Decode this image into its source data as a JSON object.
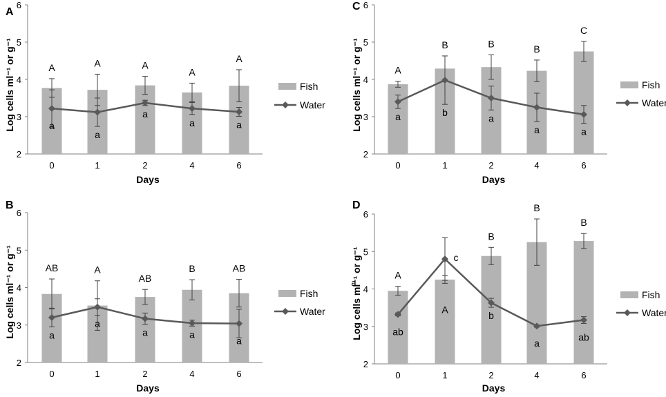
{
  "figure": {
    "legend": {
      "bar_label": "Fish",
      "line_label": "Water"
    },
    "colors": {
      "bar": "#b3b3b3",
      "line": "#595959",
      "axis": "#7f7f7f",
      "error": "#404040"
    }
  },
  "chart_data": [
    {
      "panel": "A",
      "type": "bar+line",
      "categories": [
        "0",
        "1",
        "2",
        "4",
        "6"
      ],
      "xlabel": "Days",
      "ylabel": "Log cells ml⁻¹ or g⁻¹",
      "ylim": [
        2,
        6
      ],
      "yticks": [
        "2",
        "3",
        "4",
        "5",
        "6"
      ],
      "series": [
        {
          "name": "Fish",
          "kind": "bar",
          "values": [
            3.77,
            3.72,
            3.84,
            3.65,
            3.83
          ],
          "err": [
            0.25,
            0.42,
            0.24,
            0.25,
            0.43
          ],
          "letters": [
            "A",
            "A",
            "A",
            "A",
            "A"
          ]
        },
        {
          "name": "Water",
          "kind": "line",
          "values": [
            3.22,
            3.12,
            3.37,
            3.22,
            3.13
          ],
          "err": [
            0.5,
            0.38,
            0.07,
            0.16,
            0.12
          ],
          "letters": [
            "a",
            "a",
            "a",
            "a",
            "a"
          ]
        }
      ]
    },
    {
      "panel": "B",
      "type": "bar+line",
      "categories": [
        "0",
        "1",
        "2",
        "4",
        "6"
      ],
      "xlabel": "Days",
      "ylabel": "Log cells ml⁻¹ or g⁻¹",
      "ylim": [
        2,
        6
      ],
      "yticks": [
        "2",
        "3",
        "4",
        "5",
        "6"
      ],
      "series": [
        {
          "name": "Fish",
          "kind": "bar",
          "values": [
            3.83,
            3.52,
            3.75,
            3.94,
            3.85
          ],
          "err": [
            0.4,
            0.66,
            0.2,
            0.27,
            0.37
          ],
          "letters": [
            "AB",
            "A",
            "AB",
            "B",
            "AB"
          ]
        },
        {
          "name": "Water",
          "kind": "line",
          "values": [
            3.2,
            3.48,
            3.17,
            3.05,
            3.04
          ],
          "err": [
            0.25,
            0.22,
            0.15,
            0.08,
            0.38
          ],
          "letters": [
            "a",
            "a",
            "a",
            "a",
            "a"
          ]
        }
      ]
    },
    {
      "panel": "C",
      "type": "bar+line",
      "categories": [
        "0",
        "1",
        "2",
        "4",
        "6"
      ],
      "xlabel": "Days",
      "ylabel": "Log cells ml⁻¹ or g⁻¹",
      "ylim": [
        2,
        6
      ],
      "yticks": [
        "2",
        "3",
        "4",
        "5",
        "6"
      ],
      "series": [
        {
          "name": "Fish",
          "kind": "bar",
          "values": [
            3.87,
            4.29,
            4.33,
            4.23,
            4.75
          ],
          "err": [
            0.08,
            0.34,
            0.33,
            0.29,
            0.27
          ],
          "letters": [
            "A",
            "B",
            "B",
            "B",
            "C"
          ]
        },
        {
          "name": "Water",
          "kind": "line",
          "values": [
            3.4,
            3.98,
            3.5,
            3.25,
            3.06
          ],
          "err": [
            0.18,
            0.65,
            0.32,
            0.38,
            0.24
          ],
          "letters": [
            "a",
            "b",
            "a",
            "a",
            "a"
          ]
        }
      ]
    },
    {
      "panel": "D",
      "type": "bar+line",
      "categories": [
        "0",
        "1",
        "2",
        "4",
        "6"
      ],
      "xlabel": "Days",
      "ylabel": "Log cells ml⁻¹ or g⁻¹",
      "ylabel_extra": "a",
      "ylim": [
        2,
        6
      ],
      "yticks": [
        "2",
        "3",
        "4",
        "5",
        "6"
      ],
      "series": [
        {
          "name": "Fish",
          "kind": "bar",
          "values": [
            3.95,
            4.25,
            4.88,
            5.25,
            5.28
          ],
          "err": [
            0.12,
            0.1,
            0.23,
            0.62,
            0.2
          ],
          "letters": [
            "A",
            "A",
            "B",
            "B",
            "B"
          ]
        },
        {
          "name": "Water",
          "kind": "line",
          "values": [
            3.32,
            4.8,
            3.63,
            3.01,
            3.17
          ],
          "err": [
            0.04,
            0.57,
            0.12,
            0.03,
            0.09
          ],
          "letters": [
            "ab",
            "c",
            "b",
            "a",
            "ab"
          ]
        }
      ]
    }
  ]
}
